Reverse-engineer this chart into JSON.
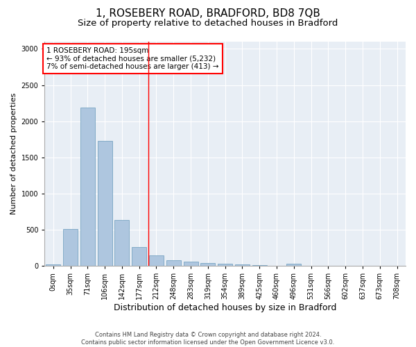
{
  "title": "1, ROSEBERY ROAD, BRADFORD, BD8 7QB",
  "subtitle": "Size of property relative to detached houses in Bradford",
  "xlabel": "Distribution of detached houses by size in Bradford",
  "ylabel": "Number of detached properties",
  "categories": [
    "0sqm",
    "35sqm",
    "71sqm",
    "106sqm",
    "142sqm",
    "177sqm",
    "212sqm",
    "248sqm",
    "283sqm",
    "319sqm",
    "354sqm",
    "389sqm",
    "425sqm",
    "460sqm",
    "496sqm",
    "531sqm",
    "566sqm",
    "602sqm",
    "637sqm",
    "673sqm",
    "708sqm"
  ],
  "values": [
    20,
    510,
    2190,
    1730,
    630,
    260,
    145,
    80,
    55,
    40,
    25,
    15,
    10,
    5,
    30,
    5,
    3,
    3,
    2,
    2,
    3
  ],
  "bar_color": "#aec6df",
  "bar_edge_color": "#6699bb",
  "vline_x": 5.55,
  "vline_color": "red",
  "annotation_text": "1 ROSEBERY ROAD: 195sqm\n← 93% of detached houses are smaller (5,232)\n7% of semi-detached houses are larger (413) →",
  "annotation_box_color": "white",
  "annotation_box_edge_color": "red",
  "ylim": [
    0,
    3100
  ],
  "yticks": [
    0,
    500,
    1000,
    1500,
    2000,
    2500,
    3000
  ],
  "background_color": "#e8eef5",
  "footer_text": "Contains HM Land Registry data © Crown copyright and database right 2024.\nContains public sector information licensed under the Open Government Licence v3.0.",
  "title_fontsize": 11,
  "subtitle_fontsize": 9.5,
  "xlabel_fontsize": 9,
  "ylabel_fontsize": 8,
  "tick_fontsize": 7,
  "annotation_fontsize": 7.5,
  "footer_fontsize": 6
}
